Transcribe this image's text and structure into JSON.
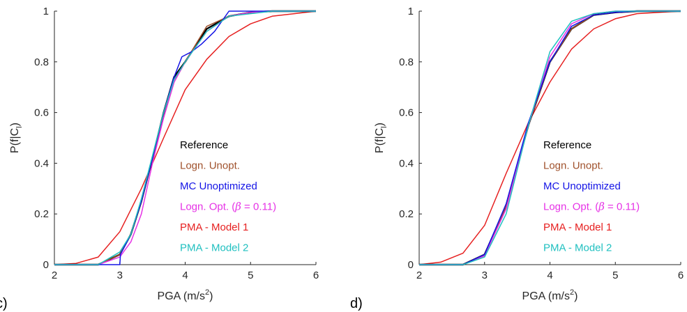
{
  "panel_letters": [
    "c)",
    "d)"
  ],
  "colors": {
    "Reference": "#000000",
    "Logn. Unopt.": "#a0522d",
    "MC Unoptimized": "#1414e6",
    "Logn. Opt.": "#e633e6",
    "PMA - Model 1": "#e62020",
    "PMA - Model 2": "#20c0c0"
  },
  "chart_data": [
    {
      "type": "line",
      "title": "",
      "xlabel": "PGA (m/s",
      "xlabel_sup": "2",
      "xlabel_close": ")",
      "ylabel": "P(f|C",
      "ylabel_sub": "l",
      "ylabel_close": ")",
      "xlim": [
        2,
        6
      ],
      "ylim": [
        0,
        1
      ],
      "xticks": [
        "2",
        "3",
        "4",
        "5",
        "6"
      ],
      "yticks": [
        "0",
        "0.2",
        "0.4",
        "0.6",
        "0.8",
        "1"
      ],
      "grid": false,
      "legend_position": "center-right",
      "series": [
        {
          "name": "Reference",
          "x": [
            2,
            2.33,
            2.67,
            3.0,
            3.17,
            3.33,
            3.5,
            3.67,
            3.83,
            4.0,
            4.33,
            4.67,
            5.0,
            5.33,
            5.67,
            6.0
          ],
          "y": [
            0,
            0,
            0,
            0.04,
            0.12,
            0.25,
            0.42,
            0.6,
            0.74,
            0.8,
            0.93,
            0.98,
            0.995,
            1,
            1,
            1
          ]
        },
        {
          "name": "Logn. Unopt.",
          "x": [
            2,
            2.33,
            2.67,
            3.0,
            3.17,
            3.33,
            3.5,
            3.67,
            3.83,
            4.0,
            4.33,
            4.67,
            5.0,
            5.33,
            5.67,
            6.0
          ],
          "y": [
            0,
            0,
            0,
            0.04,
            0.12,
            0.25,
            0.42,
            0.58,
            0.72,
            0.8,
            0.94,
            0.98,
            0.995,
            1,
            1,
            1
          ]
        },
        {
          "name": "MC Unoptimized",
          "x": [
            2,
            2.33,
            2.67,
            3.0,
            3.01,
            3.17,
            3.33,
            3.5,
            3.67,
            3.83,
            3.95,
            4.1,
            4.25,
            4.45,
            4.67,
            5.0,
            5.33,
            5.67,
            6.0
          ],
          "y": [
            0,
            0,
            0,
            0,
            0.04,
            0.12,
            0.25,
            0.42,
            0.6,
            0.74,
            0.82,
            0.84,
            0.87,
            0.92,
            1,
            1,
            1,
            1,
            1
          ]
        },
        {
          "name": "Logn. Opt.",
          "beta_label": "0.11",
          "x": [
            2,
            2.33,
            2.67,
            3.0,
            3.17,
            3.33,
            3.5,
            3.67,
            3.83,
            4.0,
            4.33,
            4.67,
            5.0,
            5.33,
            5.67,
            6.0
          ],
          "y": [
            0,
            0,
            0,
            0.03,
            0.09,
            0.2,
            0.4,
            0.58,
            0.72,
            0.8,
            0.92,
            0.98,
            0.995,
            1,
            1,
            1
          ]
        },
        {
          "name": "PMA - Model 1",
          "x": [
            2,
            2.33,
            2.67,
            3.0,
            3.33,
            3.67,
            4.0,
            4.33,
            4.67,
            5.0,
            5.33,
            5.67,
            6.0
          ],
          "y": [
            0,
            0.005,
            0.03,
            0.13,
            0.3,
            0.5,
            0.69,
            0.81,
            0.9,
            0.95,
            0.98,
            0.99,
            1
          ]
        },
        {
          "name": "PMA - Model 2",
          "x": [
            2,
            2.33,
            2.67,
            3.0,
            3.17,
            3.33,
            3.5,
            3.67,
            3.83,
            4.0,
            4.33,
            4.67,
            5.0,
            5.33,
            5.67,
            6.0
          ],
          "y": [
            0,
            0,
            0,
            0.05,
            0.12,
            0.26,
            0.43,
            0.6,
            0.73,
            0.8,
            0.92,
            0.98,
            0.99,
            1,
            1,
            1
          ]
        }
      ]
    },
    {
      "type": "line",
      "title": "",
      "xlabel": "PGA (m/s",
      "xlabel_sup": "2",
      "xlabel_close": ")",
      "ylabel": "P(f|C",
      "ylabel_sub": "l",
      "ylabel_close": ")",
      "xlim": [
        2,
        6
      ],
      "ylim": [
        0,
        1
      ],
      "xticks": [
        "2",
        "3",
        "4",
        "5",
        "6"
      ],
      "yticks": [
        "0",
        "0.2",
        "0.4",
        "0.6",
        "0.8",
        "1"
      ],
      "grid": false,
      "legend_position": "center-right",
      "series": [
        {
          "name": "Reference",
          "x": [
            2,
            2.33,
            2.67,
            3.0,
            3.33,
            3.67,
            4.0,
            4.33,
            4.67,
            5.0,
            5.33,
            5.67,
            6.0
          ],
          "y": [
            0,
            0,
            0,
            0.04,
            0.23,
            0.55,
            0.8,
            0.93,
            0.985,
            0.995,
            1,
            1,
            1
          ]
        },
        {
          "name": "Logn. Unopt.",
          "x": [
            2,
            2.33,
            2.67,
            3.0,
            3.33,
            3.67,
            4.0,
            4.33,
            4.67,
            5.0,
            5.33,
            5.67,
            6.0
          ],
          "y": [
            0,
            0,
            0,
            0.04,
            0.23,
            0.55,
            0.8,
            0.93,
            0.985,
            0.995,
            1,
            1,
            1
          ]
        },
        {
          "name": "MC Unoptimized",
          "x": [
            2,
            2.33,
            2.67,
            3.0,
            3.33,
            3.67,
            4.0,
            4.33,
            4.67,
            5.0,
            5.33,
            5.67,
            6.0
          ],
          "y": [
            0,
            0,
            0,
            0.04,
            0.24,
            0.56,
            0.8,
            0.94,
            0.985,
            0.995,
            1,
            1,
            1
          ]
        },
        {
          "name": "Logn. Opt.",
          "beta_label": "0.11",
          "x": [
            2,
            2.33,
            2.67,
            3.0,
            3.33,
            3.67,
            4.0,
            4.33,
            4.67,
            5.0,
            5.33,
            5.67,
            6.0
          ],
          "y": [
            0,
            0,
            0,
            0.035,
            0.22,
            0.55,
            0.82,
            0.95,
            0.99,
            1,
            1,
            1,
            1
          ]
        },
        {
          "name": "PMA - Model 1",
          "x": [
            2,
            2.33,
            2.67,
            3.0,
            3.33,
            3.67,
            4.0,
            4.33,
            4.67,
            5.0,
            5.33,
            5.67,
            6.0
          ],
          "y": [
            0,
            0.01,
            0.045,
            0.155,
            0.36,
            0.56,
            0.72,
            0.85,
            0.93,
            0.97,
            0.99,
            0.995,
            1
          ]
        },
        {
          "name": "PMA - Model 2",
          "x": [
            2,
            2.33,
            2.67,
            3.0,
            3.33,
            3.67,
            4.0,
            4.33,
            4.67,
            5.0,
            5.33,
            5.67,
            6.0
          ],
          "y": [
            0,
            0,
            0,
            0.03,
            0.2,
            0.55,
            0.84,
            0.96,
            0.99,
            1,
            1,
            1,
            1
          ]
        }
      ]
    }
  ]
}
